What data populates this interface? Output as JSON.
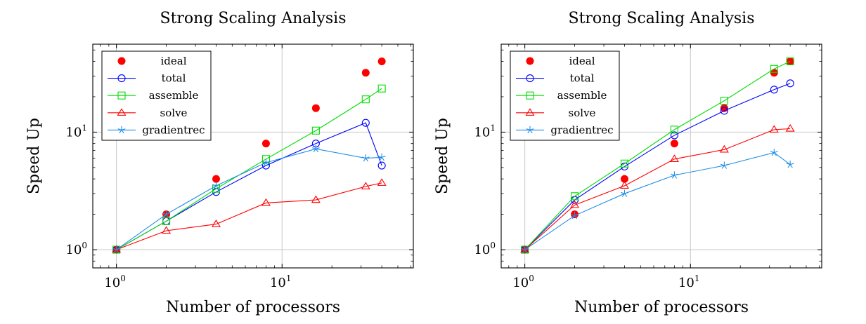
{
  "chart_data": [
    {
      "type": "line",
      "title": "Strong Scaling Analysis",
      "xlabel": "Number of processors",
      "ylabel": "Speed Up",
      "xscale": "log",
      "yscale": "log",
      "xlim": [
        0.72,
        62
      ],
      "ylim": [
        0.7,
        56
      ],
      "x_ticks": [
        {
          "base": "10",
          "exp": "0",
          "value": 1
        },
        {
          "base": "10",
          "exp": "1",
          "value": 10
        }
      ],
      "y_ticks": [
        {
          "base": "10",
          "exp": "0",
          "value": 1
        },
        {
          "base": "10",
          "exp": "1",
          "value": 10
        }
      ],
      "grid": true,
      "legend_position": "top-left",
      "x": [
        1,
        2,
        4,
        8,
        16,
        32,
        40
      ],
      "series": [
        {
          "name": "ideal",
          "marker": "filled-circle",
          "color": "#ff0000",
          "line": false,
          "values": [
            1,
            2,
            4,
            8,
            16,
            32,
            40
          ]
        },
        {
          "name": "total",
          "marker": "circle",
          "color": "#0000ff",
          "line": true,
          "values": [
            1,
            1.75,
            3.1,
            5.2,
            8.0,
            12.0,
            5.2
          ]
        },
        {
          "name": "assemble",
          "marker": "square",
          "color": "#00dd00",
          "line": true,
          "values": [
            1,
            1.75,
            3.3,
            5.9,
            10.3,
            19.0,
            23.5
          ]
        },
        {
          "name": "solve",
          "marker": "triangle",
          "color": "#ff0000",
          "line": true,
          "values": [
            1,
            1.45,
            1.65,
            2.5,
            2.65,
            3.45,
            3.7
          ]
        },
        {
          "name": "gradientrec",
          "marker": "star",
          "color": "#1f8ee6",
          "line": true,
          "values": [
            1,
            2.0,
            3.5,
            5.5,
            7.2,
            6.0,
            6.1
          ]
        }
      ]
    },
    {
      "type": "line",
      "title": "Strong Scaling Analysis",
      "xlabel": "Number of processors",
      "ylabel": "Speed Up",
      "xscale": "log",
      "yscale": "log",
      "xlim": [
        0.72,
        62
      ],
      "ylim": [
        0.7,
        56
      ],
      "x_ticks": [
        {
          "base": "10",
          "exp": "0",
          "value": 1
        },
        {
          "base": "10",
          "exp": "1",
          "value": 10
        }
      ],
      "y_ticks": [
        {
          "base": "10",
          "exp": "0",
          "value": 1
        },
        {
          "base": "10",
          "exp": "1",
          "value": 10
        }
      ],
      "grid": true,
      "legend_position": "top-left",
      "x": [
        1,
        2,
        4,
        8,
        16,
        32,
        40
      ],
      "series": [
        {
          "name": "ideal",
          "marker": "filled-circle",
          "color": "#ff0000",
          "line": false,
          "values": [
            1,
            2,
            4,
            8,
            16,
            32,
            40
          ]
        },
        {
          "name": "total",
          "marker": "circle",
          "color": "#0000ff",
          "line": true,
          "values": [
            1,
            2.65,
            5.1,
            9.4,
            15.2,
            23.0,
            26.0
          ]
        },
        {
          "name": "assemble",
          "marker": "square",
          "color": "#00dd00",
          "line": true,
          "values": [
            1,
            2.85,
            5.4,
            10.5,
            18.5,
            34.5,
            40.0
          ]
        },
        {
          "name": "solve",
          "marker": "triangle",
          "color": "#ff0000",
          "line": true,
          "values": [
            1,
            2.4,
            3.5,
            5.9,
            7.1,
            10.5,
            10.7
          ]
        },
        {
          "name": "gradientrec",
          "marker": "star",
          "color": "#1f8ee6",
          "line": true,
          "values": [
            1,
            1.95,
            3.0,
            4.3,
            5.2,
            6.7,
            5.3
          ]
        }
      ]
    }
  ]
}
